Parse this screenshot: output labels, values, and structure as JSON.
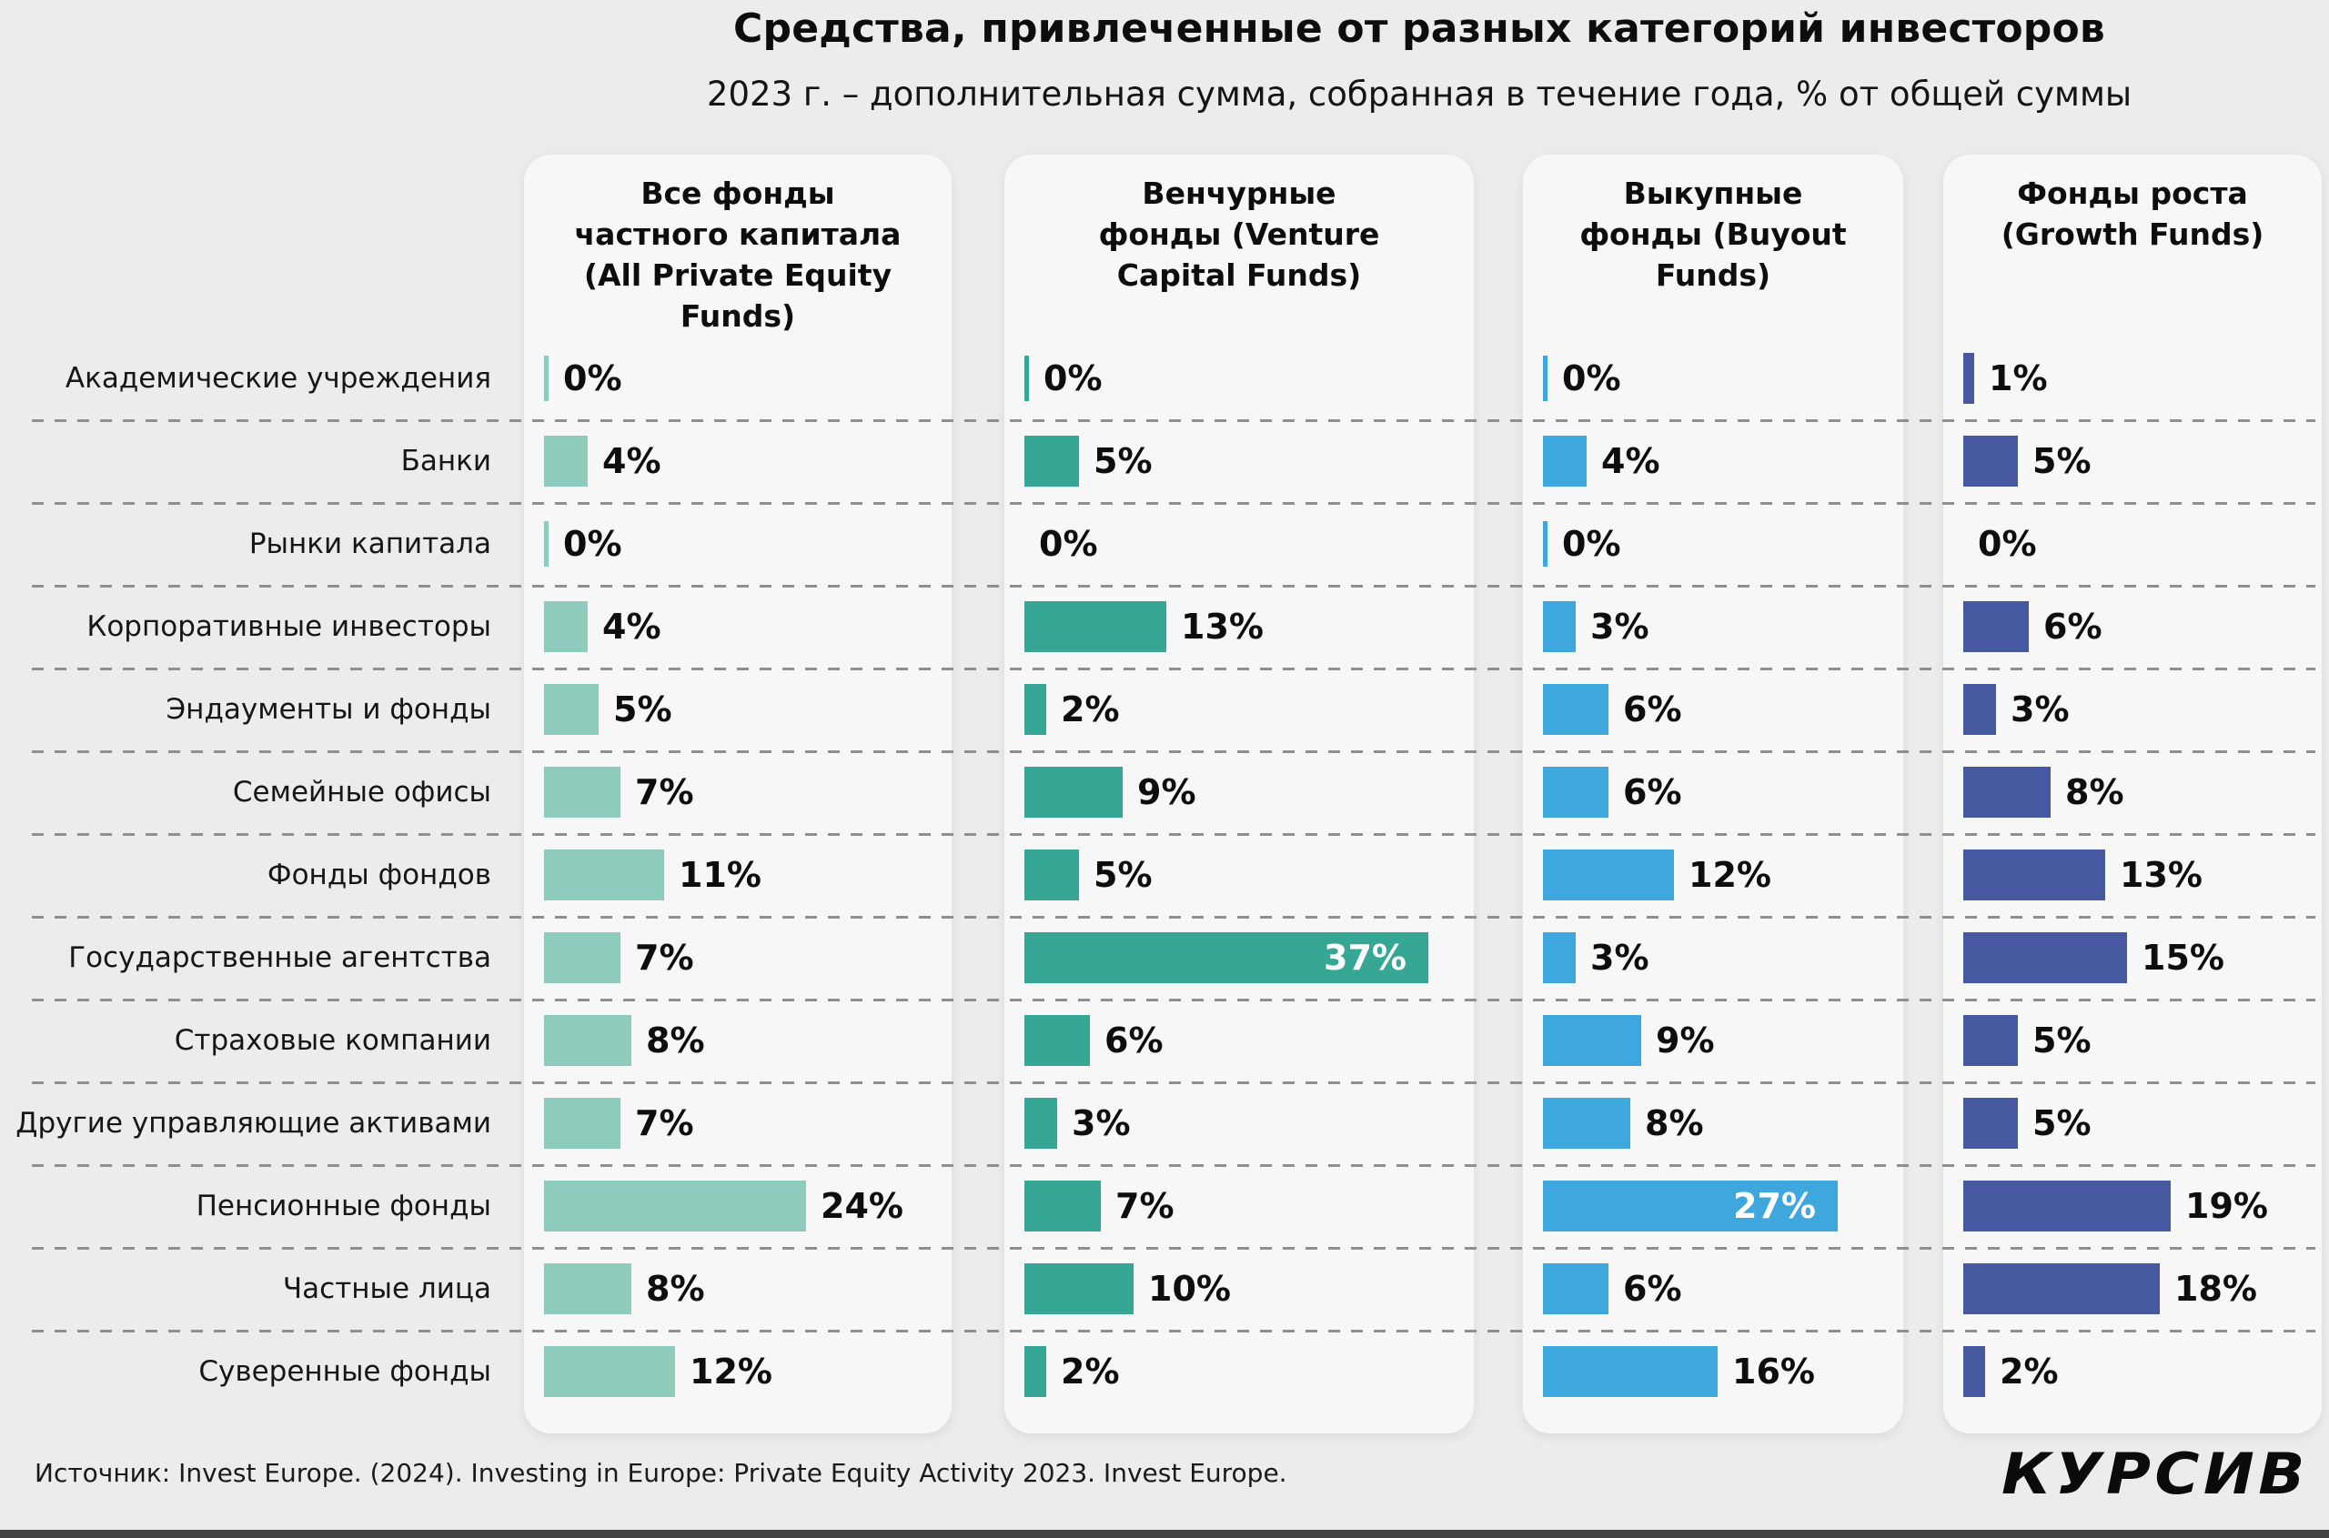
{
  "page": {
    "source": "Источник: Invest Europe. (2024). Investing in Europe: Private Equity Activity 2023. Invest Europe.",
    "logo": "КУРСИВ"
  },
  "chart_data": {
    "type": "bar",
    "orientation": "horizontal",
    "unit": "%",
    "title": "Средства, привлеченные от разных категорий инвесторов",
    "subtitle": "2023 г. – дополнительная сумма, собранная в течение года, % от общей суммы",
    "categories": [
      "Академические учреждения",
      "Банки",
      "Рынки капитала",
      "Корпоративные инвесторы",
      "Эндаументы и фонды",
      "Семейные офисы",
      "Фонды фондов",
      "Государственные агентства",
      "Страховые компании",
      "Другие управляющие активами",
      "Пенсионные фонды",
      "Частные лица",
      "Суверенные фонды"
    ],
    "series": [
      {
        "name": "Все фонды частного капитала (All Private Equity Funds)",
        "header_lines": [
          "Все фонды",
          "частного капитала",
          "(All Private Equity",
          "Funds)"
        ],
        "color": "#8dccbd",
        "values": [
          0,
          4,
          0,
          4,
          5,
          7,
          11,
          7,
          8,
          7,
          24,
          8,
          12
        ],
        "zero_ticks": [
          0,
          2
        ],
        "inside_labels": []
      },
      {
        "name": "Венчурные фонды (Venture Capital Funds)",
        "header_lines": [
          "Венчурные",
          "фонды (Venture",
          "Capital Funds)"
        ],
        "color": "#36a794",
        "values": [
          0,
          5,
          0,
          13,
          2,
          9,
          5,
          37,
          6,
          3,
          7,
          10,
          2
        ],
        "zero_ticks": [
          0
        ],
        "inside_labels": [
          7
        ]
      },
      {
        "name": "Выкупные фонды (Buyout Funds)",
        "header_lines": [
          "Выкупные",
          "фонды (Buyout",
          "Funds)"
        ],
        "color": "#3ea7de",
        "values": [
          0,
          4,
          0,
          3,
          6,
          6,
          12,
          3,
          9,
          8,
          27,
          6,
          16
        ],
        "zero_ticks": [
          0,
          2
        ],
        "inside_labels": [
          10
        ]
      },
      {
        "name": "Фонды роста (Growth Funds)",
        "header_lines": [
          "Фонды роста",
          "(Growth Funds)"
        ],
        "color": "#4659a0",
        "values": [
          1,
          5,
          0,
          6,
          3,
          8,
          13,
          15,
          5,
          5,
          19,
          18,
          2
        ],
        "zero_ticks": [],
        "inside_labels": []
      }
    ],
    "xlim": [
      0,
      40
    ],
    "grid": "dashed row separators",
    "legend": "none",
    "value_labels": "shown next to each bar"
  }
}
